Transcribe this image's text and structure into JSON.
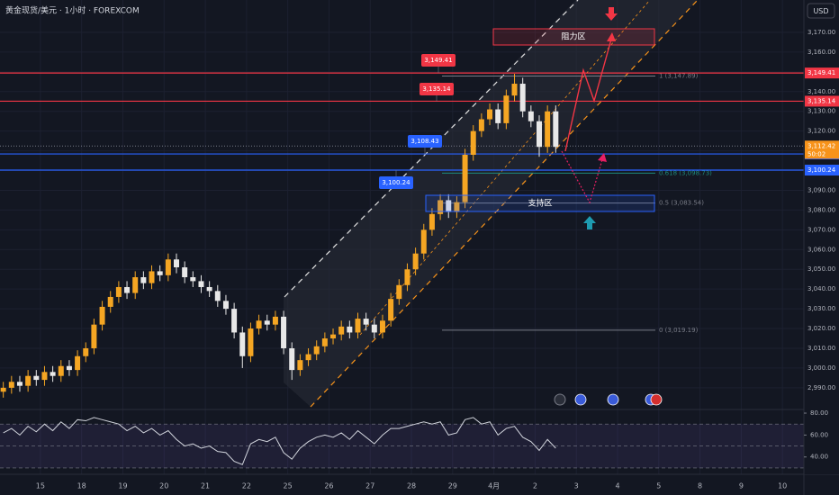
{
  "chart_data": {
    "type": "candlestick",
    "title": "黄金现货/美元 · 1小时 · FOREXCOM",
    "currency": "USD",
    "up_color": "#f5a623",
    "down_color": "#e8e8e8",
    "grid": true,
    "xlim": [
      -0.98,
      18.52
    ],
    "xticks": [
      {
        "value": 0,
        "label": "15"
      },
      {
        "value": 1,
        "label": "18"
      },
      {
        "value": 2,
        "label": "19"
      },
      {
        "value": 3,
        "label": "20"
      },
      {
        "value": 4,
        "label": "21"
      },
      {
        "value": 5,
        "label": "22"
      },
      {
        "value": 6,
        "label": "25"
      },
      {
        "value": 7,
        "label": "26"
      },
      {
        "value": 8,
        "label": "27"
      },
      {
        "value": 9,
        "label": "28"
      },
      {
        "value": 10,
        "label": "29"
      },
      {
        "value": 11,
        "label": "4月"
      },
      {
        "value": 12,
        "label": "2"
      },
      {
        "value": 13,
        "label": "3"
      },
      {
        "value": 14,
        "label": "4"
      },
      {
        "value": 15,
        "label": "5"
      },
      {
        "value": 16,
        "label": "8"
      },
      {
        "value": 17,
        "label": "9"
      },
      {
        "value": 18,
        "label": "10"
      }
    ],
    "ylim": [
      2979,
      3186.4
    ],
    "yticks": [
      {
        "value": 2990,
        "label": "2,990.00"
      },
      {
        "value": 3000,
        "label": "3,000.00"
      },
      {
        "value": 3010,
        "label": "3,010.00"
      },
      {
        "value": 3020,
        "label": "3,020.00"
      },
      {
        "value": 3030,
        "label": "3,030.00"
      },
      {
        "value": 3040,
        "label": "3,040.00"
      },
      {
        "value": 3050,
        "label": "3,050.00"
      },
      {
        "value": 3060,
        "label": "3,060.00"
      },
      {
        "value": 3070,
        "label": "3,070.00"
      },
      {
        "value": 3080,
        "label": "3,080.00"
      },
      {
        "value": 3090,
        "label": "3,090.00"
      },
      {
        "value": 3100,
        "label": "3,100.00"
      },
      {
        "value": 3110,
        "label": "3,110.00"
      },
      {
        "value": 3120,
        "label": "3,120.00"
      },
      {
        "value": 3130,
        "label": "3,130.00"
      },
      {
        "value": 3140,
        "label": "3,140.00"
      },
      {
        "value": 3150,
        "label": "3,150.00"
      },
      {
        "value": 3160,
        "label": "3,160.00"
      },
      {
        "value": 3170,
        "label": "3,170.00"
      }
    ],
    "candles": {
      "x": [
        -0.9,
        -0.7,
        -0.5,
        -0.3,
        -0.1,
        0.1,
        0.3,
        0.5,
        0.7,
        0.9,
        1.1,
        1.3,
        1.5,
        1.7,
        1.9,
        2.1,
        2.3,
        2.5,
        2.7,
        2.9,
        3.1,
        3.3,
        3.5,
        3.7,
        3.9,
        4.1,
        4.3,
        4.5,
        4.7,
        4.9,
        5.1,
        5.3,
        5.5,
        5.7,
        5.9,
        6.1,
        6.3,
        6.5,
        6.7,
        6.9,
        7.1,
        7.3,
        7.5,
        7.7,
        7.9,
        8.1,
        8.3,
        8.5,
        8.7,
        8.9,
        9.1,
        9.3,
        9.5,
        9.7,
        9.9,
        10.1,
        10.3,
        10.5,
        10.7,
        10.9,
        11.1,
        11.3,
        11.5,
        11.7,
        11.9,
        12.1,
        12.3,
        12.5
      ],
      "open": [
        2988,
        2990,
        2993,
        2991,
        2996,
        2994,
        2998,
        2996,
        3001,
        2999,
        3006,
        3010,
        3022,
        3031,
        3036,
        3041,
        3038,
        3046,
        3043,
        3049,
        3047,
        3055,
        3051,
        3046,
        3044,
        3041,
        3039,
        3034,
        3030,
        3018,
        3006,
        3020,
        3024,
        3022,
        3026,
        3010,
        2999,
        3004,
        3007,
        3011,
        3015,
        3017,
        3021,
        3018,
        3025,
        3022,
        3018,
        3024,
        3035,
        3042,
        3050,
        3058,
        3070,
        3078,
        3085,
        3079,
        3084,
        3108,
        3120,
        3126,
        3131,
        3124,
        3138,
        3144,
        3130,
        3125,
        3112,
        3130
      ],
      "high": [
        2993,
        2996,
        2996,
        2999,
        2999,
        3001,
        3001,
        3004,
        3004,
        3009,
        3013,
        3025,
        3034,
        3039,
        3044,
        3044,
        3049,
        3049,
        3052,
        3052,
        3058,
        3058,
        3054,
        3049,
        3047,
        3044,
        3042,
        3037,
        3033,
        3021,
        3023,
        3027,
        3027,
        3029,
        3029,
        3013,
        3007,
        3010,
        3014,
        3018,
        3020,
        3024,
        3024,
        3028,
        3028,
        3025,
        3027,
        3038,
        3045,
        3053,
        3061,
        3073,
        3081,
        3088,
        3088,
        3087,
        3111,
        3123,
        3129,
        3134,
        3134,
        3141,
        3149,
        3147,
        3133,
        3128,
        3133,
        3133
      ],
      "low": [
        2985,
        2987,
        2988,
        2988,
        2991,
        2991,
        2993,
        2993,
        2996,
        2996,
        3003,
        3007,
        3019,
        3028,
        3033,
        3035,
        3035,
        3040,
        3040,
        3044,
        3044,
        3048,
        3043,
        3041,
        3038,
        3036,
        3031,
        3027,
        3015,
        3000,
        3003,
        3017,
        3019,
        3019,
        3007,
        2994,
        2996,
        3001,
        3004,
        3008,
        3012,
        3014,
        3015,
        3015,
        3019,
        3015,
        3015,
        3021,
        3032,
        3039,
        3047,
        3055,
        3067,
        3075,
        3076,
        3076,
        3081,
        3105,
        3117,
        3123,
        3121,
        3121,
        3135,
        3127,
        3122,
        3107,
        3109,
        3109
      ],
      "close": [
        2990,
        2993,
        2991,
        2996,
        2994,
        2998,
        2996,
        3001,
        2999,
        3006,
        3010,
        3022,
        3031,
        3036,
        3041,
        3038,
        3046,
        3043,
        3049,
        3047,
        3055,
        3051,
        3046,
        3044,
        3041,
        3039,
        3034,
        3030,
        3018,
        3006,
        3020,
        3024,
        3022,
        3026,
        3010,
        2999,
        3004,
        3007,
        3011,
        3015,
        3017,
        3021,
        3018,
        3025,
        3022,
        3018,
        3024,
        3035,
        3042,
        3050,
        3058,
        3070,
        3078,
        3085,
        3079,
        3084,
        3108,
        3120,
        3126,
        3131,
        3124,
        3138,
        3144,
        3130,
        3125,
        3112,
        3130,
        3112
      ]
    },
    "levels": [
      {
        "value": 3149.41,
        "label": "3,149.41",
        "color": "#f23645"
      },
      {
        "value": 3135.14,
        "label": "3,135.14",
        "color": "#f23645"
      },
      {
        "value": 3108.43,
        "label": "3,108.43",
        "color": "#2962ff"
      },
      {
        "value": 3100.24,
        "label": "3,100.24",
        "color": "#2962ff"
      }
    ],
    "current_price": {
      "value": 3112.42,
      "label": "3,112.42",
      "countdown": "50:02",
      "color": "#f7931a"
    },
    "fib": [
      {
        "value": 3147.89,
        "label": "1 (3,147.89)",
        "color": "#787b86"
      },
      {
        "value": 3098.73,
        "label": "0.618 (3,098.73)",
        "color": "#1e8a7a"
      },
      {
        "value": 3083.54,
        "label": "0.5 (3,083.54)",
        "color": "#787b86"
      },
      {
        "value": 3019.19,
        "label": "0 (3,019.19)",
        "color": "#787b86"
      }
    ],
    "zones": {
      "resistance": "阻力区",
      "support": "支持区"
    },
    "rsi": {
      "color": "#d1d4dc",
      "ylim": [
        28.3,
        83.3
      ],
      "yticks": [
        {
          "value": 80,
          "label": "80.00"
        },
        {
          "value": 60,
          "label": "60.00"
        },
        {
          "value": 40,
          "label": "40.00"
        }
      ],
      "levels": [
        70,
        50,
        30
      ],
      "values": [
        62,
        66,
        60,
        68,
        63,
        70,
        64,
        72,
        66,
        74,
        73,
        76,
        74,
        72,
        70,
        64,
        68,
        62,
        66,
        60,
        64,
        56,
        50,
        52,
        48,
        50,
        45,
        44,
        36,
        33,
        52,
        56,
        54,
        58,
        44,
        38,
        48,
        54,
        58,
        60,
        58,
        62,
        56,
        64,
        58,
        52,
        60,
        66,
        66,
        68,
        70,
        72,
        70,
        72,
        60,
        62,
        74,
        76,
        70,
        72,
        60,
        66,
        68,
        58,
        54,
        46,
        56,
        48
      ]
    }
  }
}
